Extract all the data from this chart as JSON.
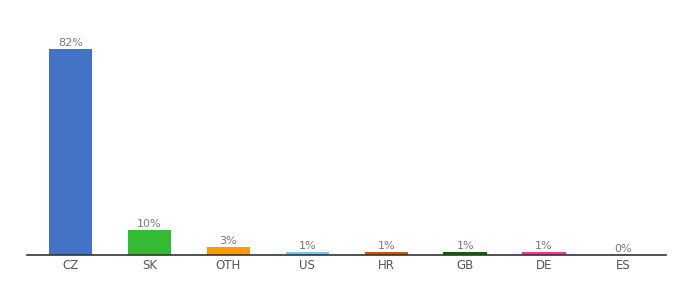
{
  "categories": [
    "CZ",
    "SK",
    "OTH",
    "US",
    "HR",
    "GB",
    "DE",
    "ES"
  ],
  "values": [
    82,
    10,
    3,
    1,
    1,
    1,
    1,
    0
  ],
  "labels": [
    "82%",
    "10%",
    "3%",
    "1%",
    "1%",
    "1%",
    "1%",
    "0%"
  ],
  "bar_colors": [
    "#4472C4",
    "#33BB33",
    "#FF9900",
    "#66CCFF",
    "#CC5500",
    "#006600",
    "#FF3399",
    "#CC5500"
  ],
  "background_color": "#ffffff",
  "ylim": [
    0,
    92
  ],
  "label_color": "#777777",
  "tick_color": "#555555",
  "spine_color": "#333333"
}
